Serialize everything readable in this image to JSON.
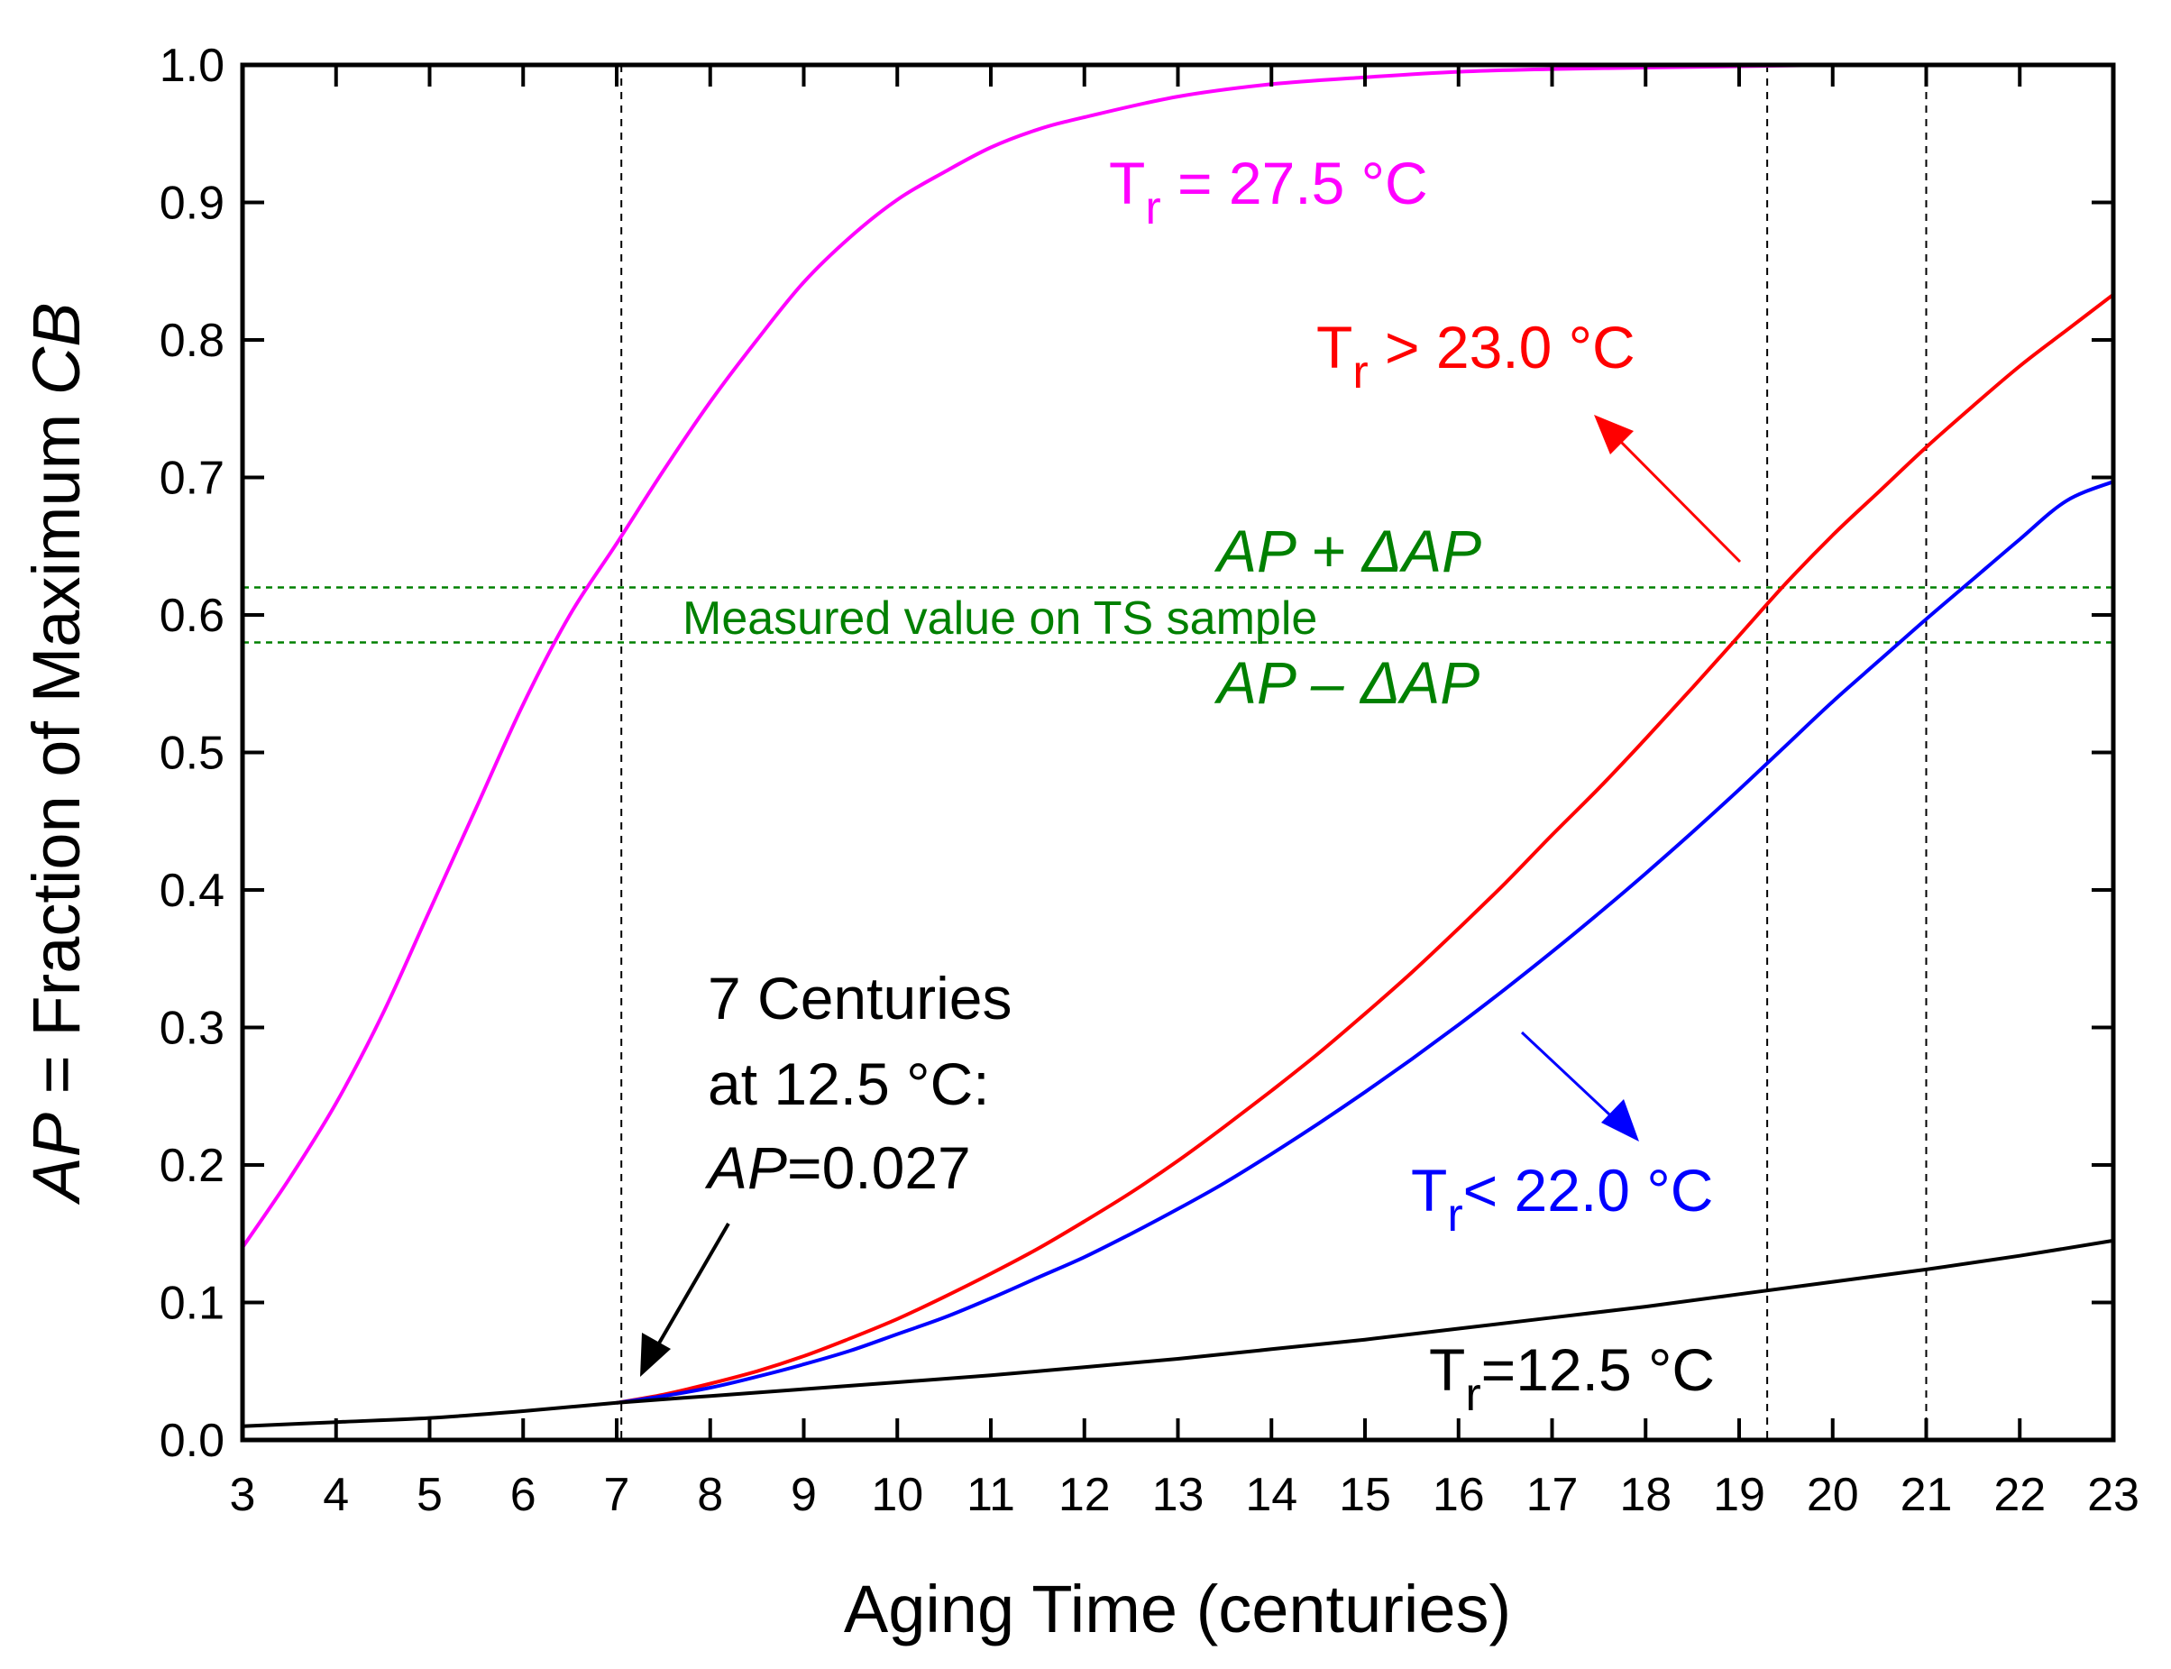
{
  "chart_data": {
    "type": "line",
    "xlabel": "Aging Time (centuries)",
    "ylabel": {
      "prefix": "AP",
      "middle": " = Fraction of Maximum ",
      "suffix": "CB"
    },
    "xlim": [
      3,
      23
    ],
    "ylim": [
      0,
      1.0
    ],
    "xticks": [
      "3",
      "4",
      "5",
      "6",
      "7",
      "8",
      "9",
      "10",
      "11",
      "12",
      "13",
      "14",
      "15",
      "16",
      "17",
      "18",
      "19",
      "20",
      "21",
      "22",
      "23"
    ],
    "yticks": [
      "0.0",
      "0.1",
      "0.2",
      "0.3",
      "0.4",
      "0.5",
      "0.6",
      "0.7",
      "0.8",
      "0.9",
      "1.0"
    ],
    "series": [
      {
        "name": "Tr = 27.5 °C",
        "color": "#ff00ff",
        "x": [
          3,
          3.5,
          4,
          4.5,
          5,
          5.5,
          6,
          6.5,
          7,
          7.5,
          8,
          8.5,
          9,
          9.5,
          10,
          10.5,
          11,
          11.5,
          12,
          13,
          14,
          15,
          16,
          17,
          18,
          19,
          20,
          21,
          22,
          23
        ],
        "y": [
          0.14,
          0.19,
          0.245,
          0.31,
          0.385,
          0.46,
          0.535,
          0.6,
          0.652,
          0.705,
          0.755,
          0.8,
          0.842,
          0.875,
          0.902,
          0.922,
          0.94,
          0.953,
          0.962,
          0.977,
          0.986,
          0.991,
          0.995,
          0.997,
          0.998,
          0.999,
          1.0,
          1.0,
          1.0,
          1.0
        ]
      },
      {
        "name": "Tr > 23.0 °C",
        "color": "#ff0000",
        "x": [
          7,
          7.5,
          8,
          8.5,
          9,
          9.5,
          10,
          10.5,
          11,
          11.5,
          12,
          12.5,
          13,
          13.5,
          14,
          14.5,
          15,
          15.5,
          16,
          16.5,
          17,
          17.5,
          18,
          18.5,
          19,
          19.5,
          20,
          20.5,
          21,
          21.5,
          22,
          22.5,
          23
        ],
        "y": [
          0.027,
          0.033,
          0.041,
          0.05,
          0.061,
          0.074,
          0.088,
          0.104,
          0.121,
          0.139,
          0.159,
          0.18,
          0.203,
          0.228,
          0.254,
          0.281,
          0.31,
          0.34,
          0.372,
          0.405,
          0.44,
          0.474,
          0.51,
          0.547,
          0.585,
          0.623,
          0.658,
          0.69,
          0.722,
          0.752,
          0.781,
          0.807,
          0.833
        ]
      },
      {
        "name": "Tr < 22.0 °C",
        "color": "#0000ff",
        "x": [
          7,
          7.5,
          8,
          8.5,
          9,
          9.5,
          10,
          10.5,
          11,
          11.5,
          12,
          12.5,
          13,
          13.5,
          14,
          14.5,
          15,
          15.5,
          16,
          16.5,
          17,
          17.5,
          18,
          18.5,
          19,
          19.5,
          20,
          20.5,
          21,
          21.5,
          22,
          22.5,
          23
        ],
        "y": [
          0.027,
          0.032,
          0.038,
          0.046,
          0.055,
          0.065,
          0.077,
          0.089,
          0.103,
          0.118,
          0.133,
          0.15,
          0.168,
          0.187,
          0.208,
          0.23,
          0.253,
          0.277,
          0.302,
          0.328,
          0.355,
          0.383,
          0.412,
          0.442,
          0.473,
          0.505,
          0.537,
          0.567,
          0.597,
          0.626,
          0.655,
          0.683,
          0.697
        ]
      },
      {
        "name": "Tr=12.5 °C",
        "color": "#000000",
        "x": [
          3,
          4,
          5,
          6,
          7,
          8,
          9,
          10,
          11,
          12,
          13,
          14,
          15,
          16,
          17,
          18,
          19,
          20,
          21,
          22,
          23
        ],
        "y": [
          0.01,
          0.013,
          0.016,
          0.021,
          0.027,
          0.032,
          0.037,
          0.042,
          0.047,
          0.053,
          0.059,
          0.066,
          0.073,
          0.081,
          0.089,
          0.097,
          0.106,
          0.115,
          0.124,
          0.134,
          0.145
        ]
      }
    ],
    "reference_lines": {
      "vertical_x": [
        7.05,
        19.3,
        21.0
      ],
      "horizontal_y": [
        0.62,
        0.58
      ],
      "horizontal_labels": [
        "AP + ΔAP",
        "AP – ΔAP"
      ]
    },
    "annotations": {
      "magenta": {
        "main": "T",
        "sub": "r",
        "rest": " = 27.5 °C"
      },
      "red": {
        "main": "T",
        "sub": "r",
        "rest": " > 23.0 °C"
      },
      "blue": {
        "main": "T",
        "sub": "r",
        "rest": "< 22.0 °C"
      },
      "black": {
        "main": "T",
        "sub": "r",
        "rest": "=12.5 °C"
      },
      "measured": "Measured value on TS sample",
      "ap_plus": {
        "italic_a": "AP",
        "op": " + Δ",
        "italic_b": "AP"
      },
      "ap_minus": {
        "italic_a": "AP",
        "op": " – Δ",
        "italic_b": "AP"
      },
      "note_line1": "7 Centuries",
      "note_line2": "at 12.5 °C:",
      "note_line3_italic": "AP",
      "note_line3_rest": "=0.027"
    },
    "grid": false,
    "colors": {
      "green": "#008000",
      "reference": "#000000"
    }
  }
}
